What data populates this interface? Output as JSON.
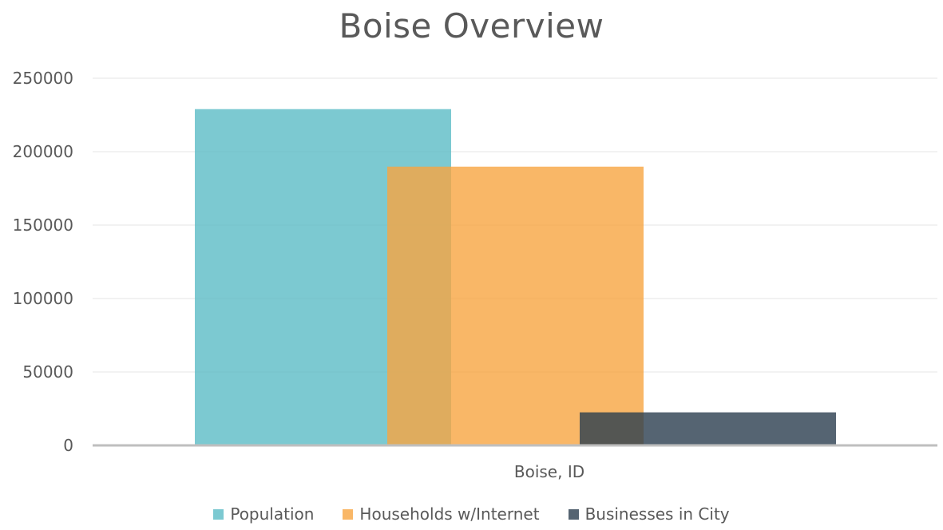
{
  "chart_data": {
    "type": "bar",
    "title": "Boise Overview",
    "categories": [
      "Boise, ID"
    ],
    "series": [
      {
        "name": "Population",
        "values": [
          228959
        ],
        "color": "#5BBCC5"
      },
      {
        "name": "Households w/Internet",
        "values": [
          189800
        ],
        "color": "#F7A541"
      },
      {
        "name": "Businesses in City",
        "values": [
          22500
        ],
        "color": "#2B3D4F"
      }
    ],
    "ylim": [
      0,
      250000
    ],
    "yticks": [
      0,
      50000,
      100000,
      150000,
      200000,
      250000
    ],
    "grid": true,
    "legend_position": "bottom",
    "bar_opacity": 0.8
  }
}
